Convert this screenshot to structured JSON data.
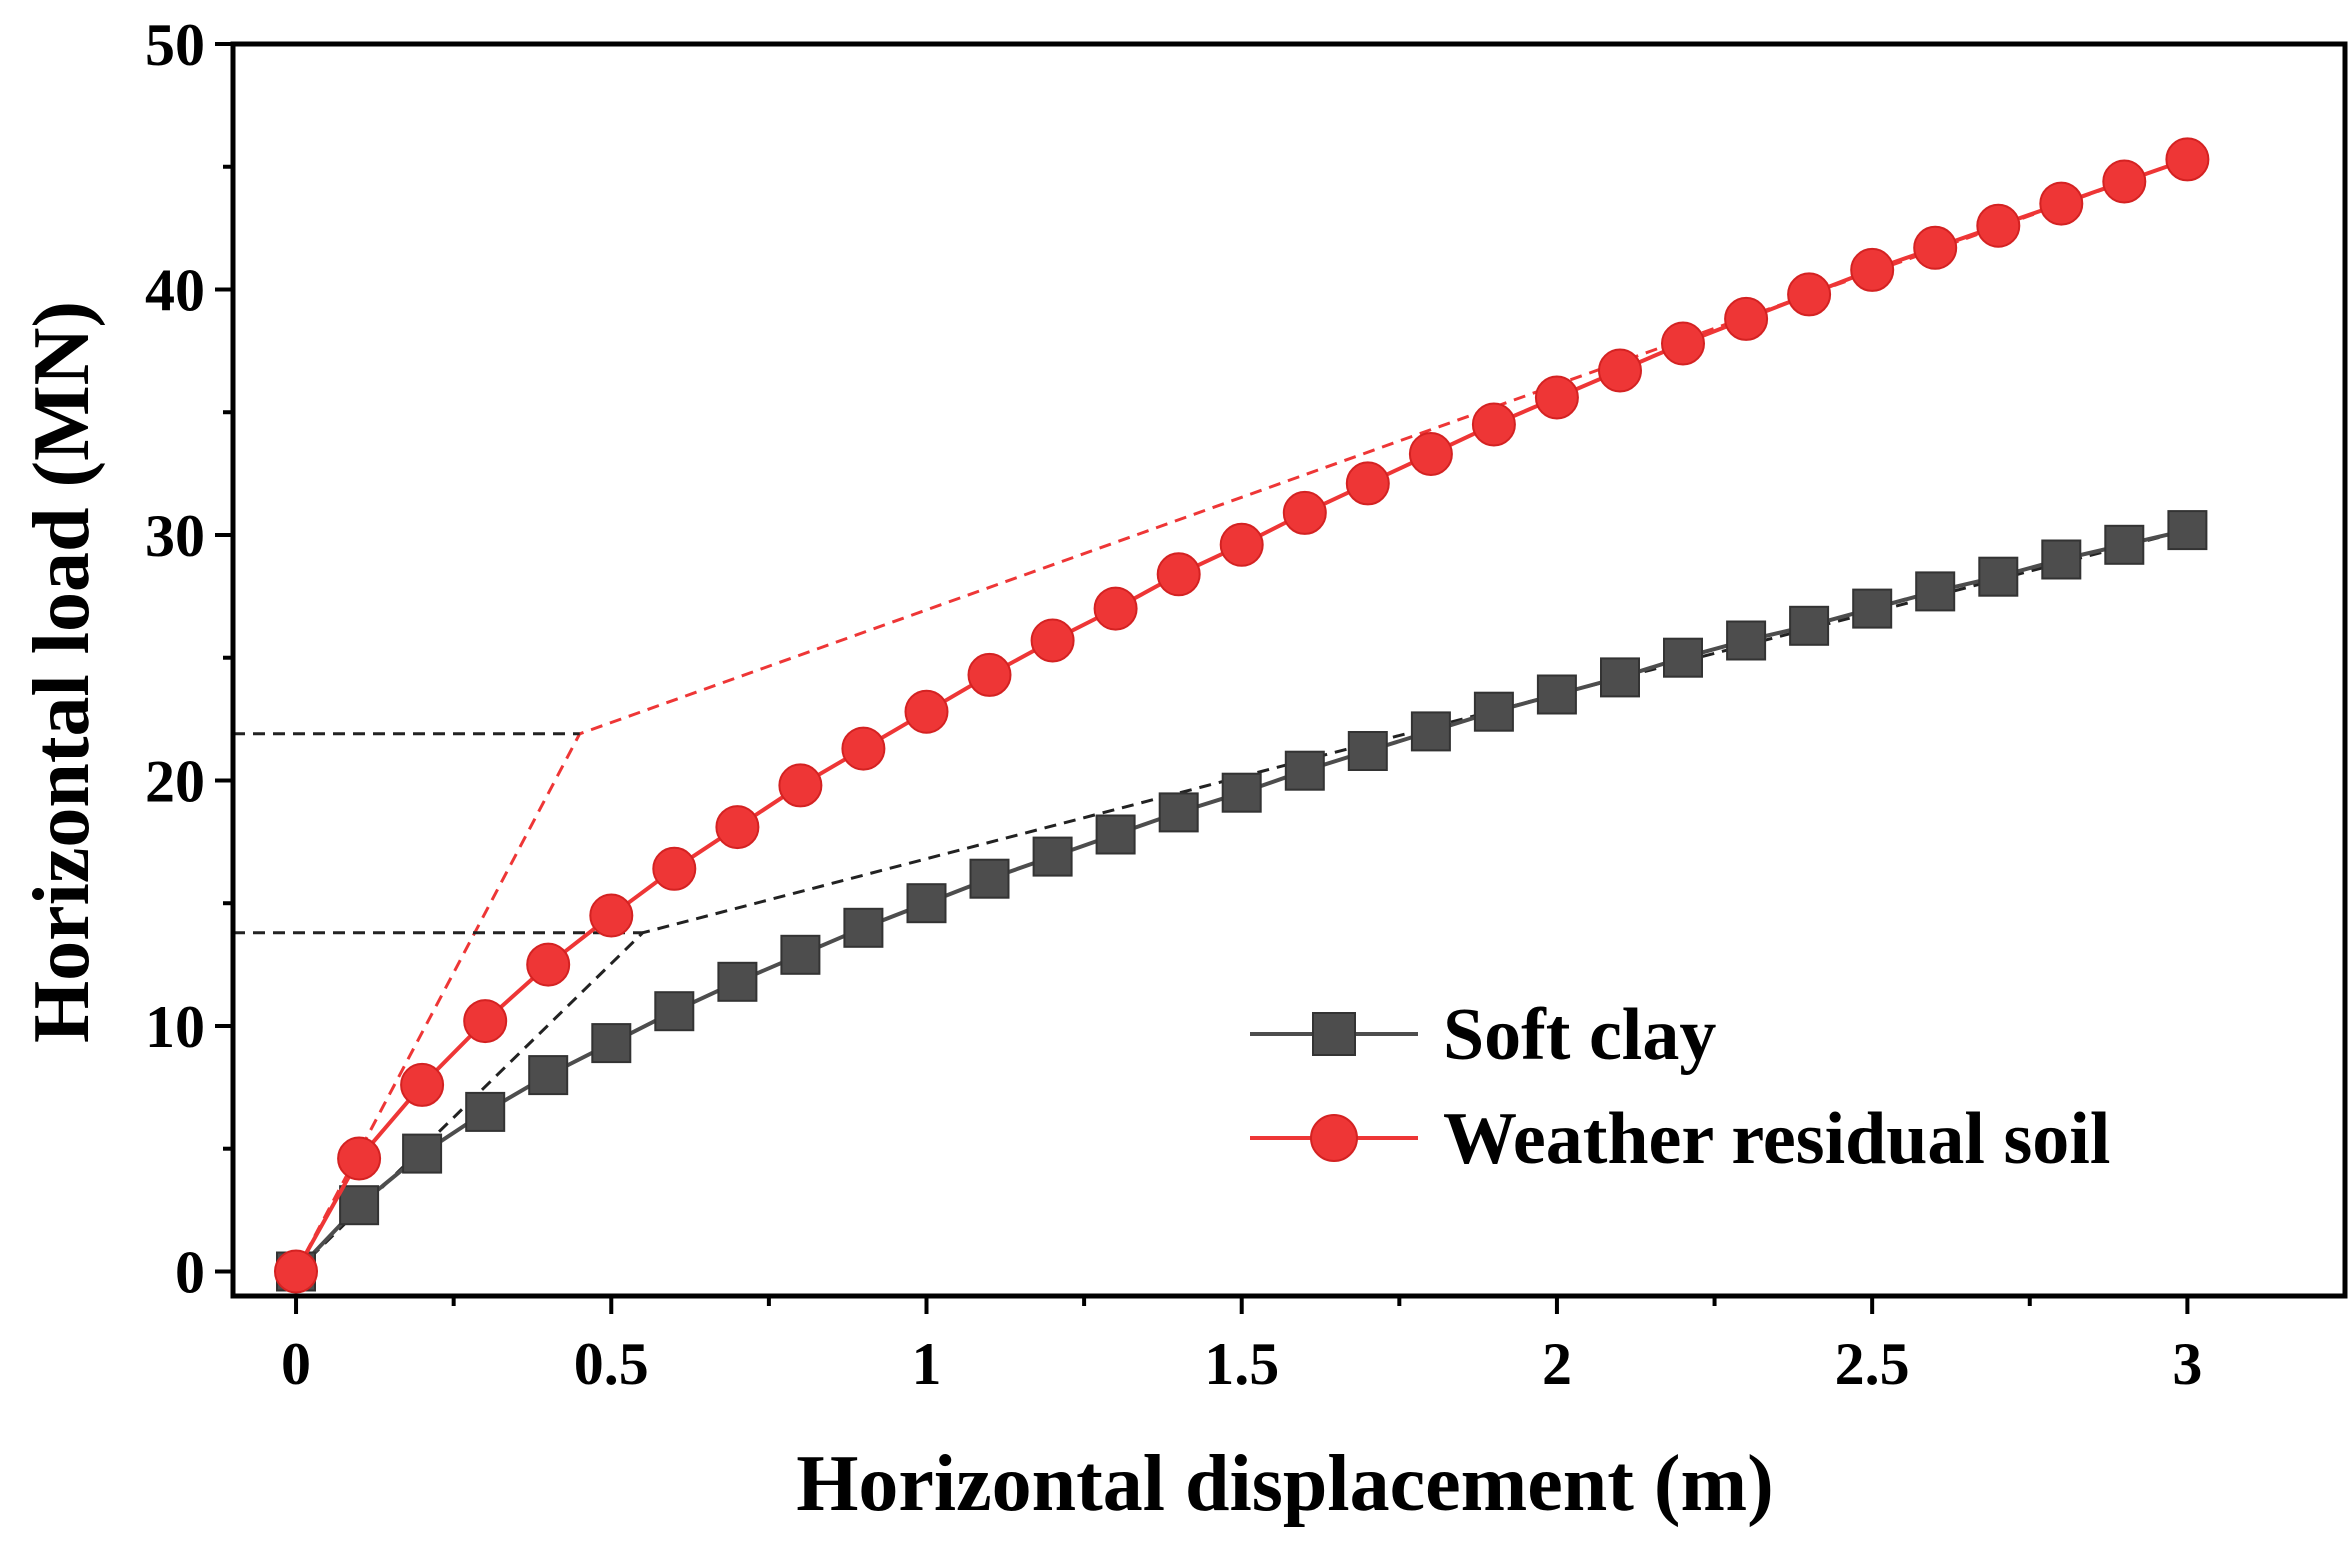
{
  "chart_data": {
    "type": "line",
    "title": "",
    "xlabel": "Horizontal displacement (m)",
    "ylabel": "Horizontal load (MN)",
    "xlim": [
      -0.1,
      3.25
    ],
    "ylim": [
      -1,
      50
    ],
    "xticks": [
      0,
      0.5,
      1,
      1.5,
      2,
      2.5,
      3
    ],
    "xtick_labels": [
      "0",
      "0.5",
      "1",
      "1.5",
      "2",
      "2.5",
      "3"
    ],
    "xticks_minor": [
      0.25,
      0.75,
      1.25,
      1.75,
      2.25,
      2.75
    ],
    "yticks": [
      0,
      10,
      20,
      30,
      40,
      50
    ],
    "ytick_labels": [
      "0",
      "10",
      "20",
      "30",
      "40",
      "50"
    ],
    "yticks_minor": [
      5,
      15,
      25,
      35,
      45
    ],
    "grid": false,
    "legend_position": "bottom-right",
    "series": [
      {
        "name": "Soft clay",
        "color": "#4d4d4d",
        "marker": "square",
        "x": [
          0,
          0.1,
          0.2,
          0.3,
          0.4,
          0.5,
          0.6,
          0.7,
          0.8,
          0.9,
          1.0,
          1.1,
          1.2,
          1.3,
          1.4,
          1.5,
          1.6,
          1.7,
          1.8,
          1.9,
          2.0,
          2.1,
          2.2,
          2.3,
          2.4,
          2.5,
          2.6,
          2.7,
          2.8,
          2.9,
          3.0
        ],
        "y": [
          0,
          2.7,
          4.8,
          6.5,
          8.0,
          9.3,
          10.6,
          11.8,
          12.9,
          14.0,
          15.0,
          16.0,
          16.9,
          17.8,
          18.7,
          19.5,
          20.4,
          21.2,
          22.0,
          22.8,
          23.5,
          24.2,
          25.0,
          25.7,
          26.3,
          27.0,
          27.7,
          28.3,
          29.0,
          29.6,
          30.2
        ]
      },
      {
        "name": "Weather residual soil",
        "color": "#ee3636",
        "marker": "circle",
        "x": [
          0,
          0.1,
          0.2,
          0.3,
          0.4,
          0.5,
          0.6,
          0.7,
          0.8,
          0.9,
          1.0,
          1.1,
          1.2,
          1.3,
          1.4,
          1.5,
          1.6,
          1.7,
          1.8,
          1.9,
          2.0,
          2.1,
          2.2,
          2.3,
          2.4,
          2.5,
          2.6,
          2.7,
          2.8,
          2.9,
          3.0
        ],
        "y": [
          0,
          4.6,
          7.6,
          10.2,
          12.5,
          14.5,
          16.4,
          18.1,
          19.8,
          21.3,
          22.8,
          24.3,
          25.7,
          27.0,
          28.4,
          29.6,
          30.9,
          32.1,
          33.3,
          34.5,
          35.6,
          36.7,
          37.8,
          38.8,
          39.8,
          40.8,
          41.7,
          42.6,
          43.5,
          44.4,
          45.3
        ]
      }
    ],
    "annotations": [
      {
        "kind": "bilinear-fit",
        "color": "#ee3636",
        "style": "dashed",
        "points": [
          [
            0,
            0
          ],
          [
            0.45,
            21.9
          ],
          [
            3.0,
            45.3
          ]
        ]
      },
      {
        "kind": "bilinear-fit",
        "color": "#222222",
        "style": "dashed",
        "points": [
          [
            0,
            0
          ],
          [
            0.55,
            13.8
          ],
          [
            3.0,
            30.2
          ]
        ]
      },
      {
        "kind": "horizontal-reference",
        "color": "#222222",
        "style": "dashed",
        "points": [
          [
            -0.1,
            21.9
          ],
          [
            0.45,
            21.9
          ]
        ]
      },
      {
        "kind": "horizontal-reference",
        "color": "#222222",
        "style": "dashed",
        "points": [
          [
            -0.1,
            13.8
          ],
          [
            0.55,
            13.8
          ]
        ]
      }
    ]
  }
}
